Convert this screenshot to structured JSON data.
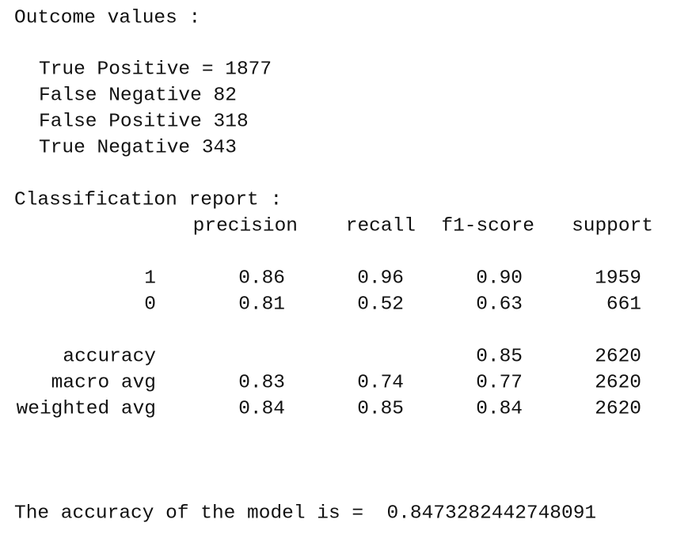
{
  "outcome_title": "Outcome values :",
  "outcomes": [
    "True Positive = 1877",
    "False Negative 82",
    "False Positive 318",
    "True Negative 343"
  ],
  "report_title": "Classification report :",
  "report": {
    "columns": [
      "precision",
      "recall",
      "f1-score",
      "support"
    ],
    "rows": [
      {
        "label": "1",
        "cells": {
          "precision": "0.86",
          "recall": "0.96",
          "f1-score": "0.90",
          "support": "1959"
        }
      },
      {
        "label": "0",
        "cells": {
          "precision": "0.81",
          "recall": "0.52",
          "f1-score": "0.63",
          "support": "661"
        }
      },
      {
        "label": "accuracy",
        "cells": {
          "f1-score": "0.85",
          "support": "2620"
        }
      },
      {
        "label": "macro avg",
        "cells": {
          "precision": "0.83",
          "recall": "0.74",
          "f1-score": "0.77",
          "support": "2620"
        }
      },
      {
        "label": "weighted avg",
        "cells": {
          "precision": "0.84",
          "recall": "0.85",
          "f1-score": "0.84",
          "support": "2620"
        }
      }
    ]
  },
  "accuracy_line": "The accuracy of the model is =  0.8473282442748091"
}
